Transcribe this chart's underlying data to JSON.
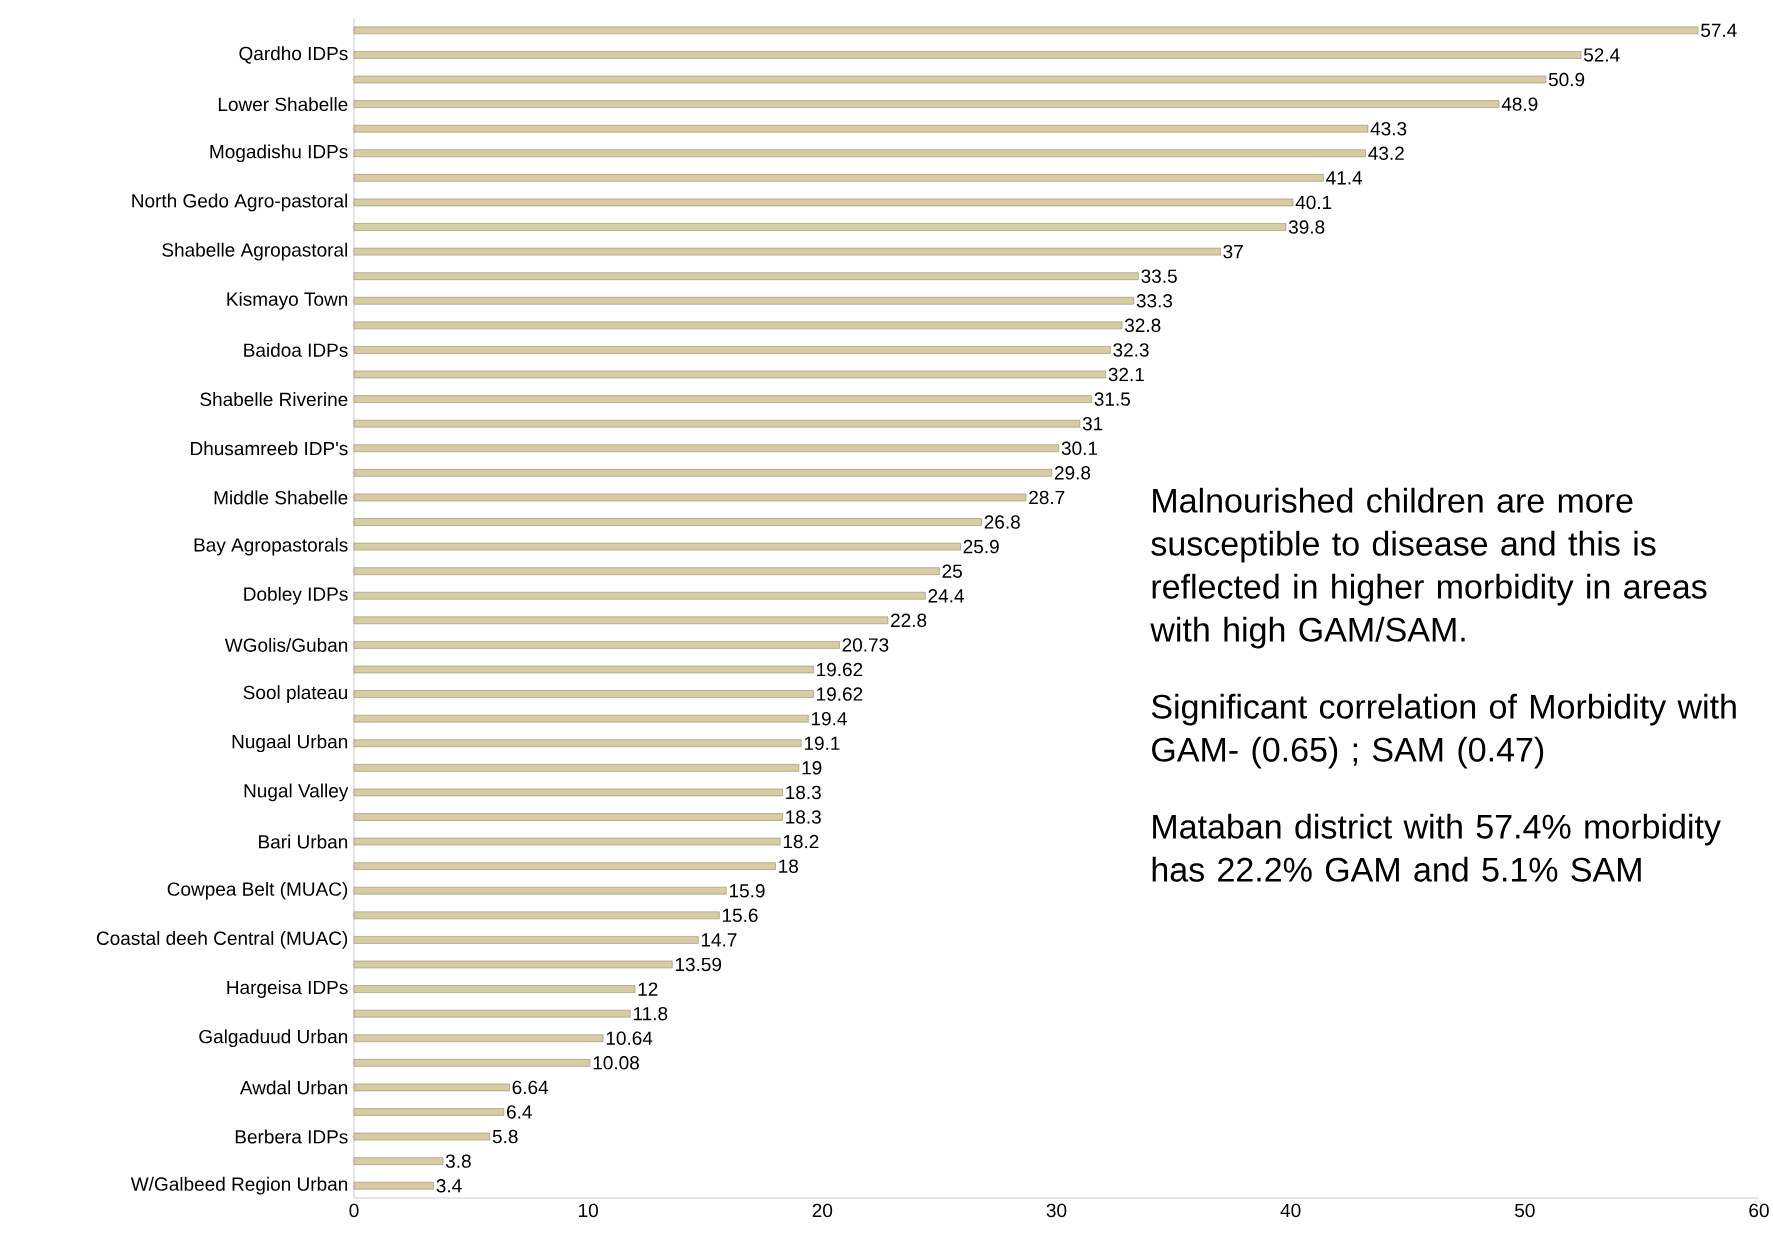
{
  "chart_data": {
    "type": "bar",
    "orientation": "horizontal",
    "categories": [
      null,
      "Qardho IDPs",
      null,
      "Lower Shabelle",
      null,
      "Mogadishu IDPs",
      null,
      "North Gedo Agro-pastoral",
      null,
      "Shabelle Agropastoral",
      null,
      "Kismayo Town",
      null,
      "Baidoa IDPs",
      null,
      "Shabelle Riverine",
      null,
      "Dhusamreeb IDP's",
      null,
      "Middle Shabelle",
      null,
      "Bay Agropastorals",
      null,
      "Dobley IDPs",
      null,
      "WGolis/Guban",
      null,
      "Sool plateau",
      null,
      "Nugaal Urban",
      null,
      "Nugal Valley",
      null,
      "Bari Urban",
      null,
      "Cowpea Belt (MUAC)",
      null,
      "Coastal deeh Central (MUAC)",
      null,
      "Hargeisa IDPs",
      null,
      "Galgaduud Urban",
      null,
      "Awdal Urban",
      null,
      "Berbera IDPs",
      null,
      "W/Galbeed Region Urban"
    ],
    "values": [
      57.4,
      52.4,
      50.9,
      48.9,
      43.3,
      43.2,
      41.4,
      40.1,
      39.8,
      37,
      33.5,
      33.3,
      32.8,
      32.3,
      32.1,
      31.5,
      31,
      30.1,
      29.8,
      28.7,
      26.8,
      25.9,
      25,
      24.4,
      22.8,
      20.73,
      19.62,
      19.62,
      19.4,
      19.1,
      19,
      18.3,
      18.3,
      18.2,
      18,
      15.9,
      15.6,
      14.7,
      13.59,
      12,
      11.8,
      10.64,
      10.08,
      6.64,
      6.4,
      5.8,
      3.8,
      3.4
    ],
    "color": "#d8cca4",
    "xlim": [
      0,
      60
    ],
    "xticks": [
      0,
      10,
      20,
      30,
      40,
      50,
      60
    ],
    "data_labels": true,
    "annotations": [
      "Malnourished children are more susceptible to disease and this is reflected in higher morbidity in areas with high GAM/SAM.",
      "Significant correlation of Morbidity with  GAM- (0.65) ; SAM (0.47)",
      "Mataban district with 57.4% morbidity has  22.2% GAM and 5.1% SAM"
    ]
  }
}
